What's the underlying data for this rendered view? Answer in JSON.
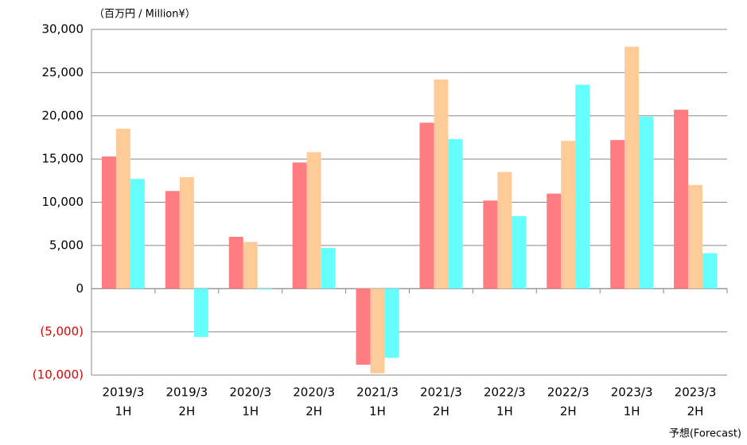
{
  "chart_data": {
    "type": "bar",
    "y_unit_label": "（百万円 / Million¥）",
    "footnote": "予想(Forecast)",
    "categories": [
      [
        "2019/3",
        "1H"
      ],
      [
        "2019/3",
        "2H"
      ],
      [
        "2020/3",
        "1H"
      ],
      [
        "2020/3",
        "2H"
      ],
      [
        "2021/3",
        "1H"
      ],
      [
        "2021/3",
        "2H"
      ],
      [
        "2022/3",
        "1H"
      ],
      [
        "2022/3",
        "2H"
      ],
      [
        "2023/3",
        "1H"
      ],
      [
        "2023/3",
        "2H"
      ]
    ],
    "series": [
      {
        "color": "#ff7c80",
        "values": [
          15300,
          11300,
          6000,
          14600,
          -8800,
          19200,
          10200,
          11000,
          17200,
          20700
        ]
      },
      {
        "color": "#ffcc99",
        "values": [
          18500,
          12900,
          5400,
          15800,
          -9800,
          24200,
          13500,
          17100,
          28000,
          12000
        ]
      },
      {
        "color": "#66ffff",
        "values": [
          12700,
          -5600,
          -100,
          4700,
          -8000,
          17300,
          8400,
          23600,
          19900,
          4100
        ]
      }
    ],
    "ylim": [
      -10000,
      30000
    ],
    "yticks": [
      {
        "value": -10000,
        "label": "(10,000)"
      },
      {
        "value": -5000,
        "label": "(5,000)"
      },
      0,
      {
        "value": 5000,
        "label": "5,000"
      },
      {
        "value": 10000,
        "label": "10,000"
      },
      {
        "value": 15000,
        "label": "15,000"
      },
      {
        "value": 20000,
        "label": "20,000"
      },
      {
        "value": 25000,
        "label": "25,000"
      },
      {
        "value": 30000,
        "label": "30,000"
      }
    ],
    "negative_tick_color": "#e00000",
    "grid": true
  }
}
